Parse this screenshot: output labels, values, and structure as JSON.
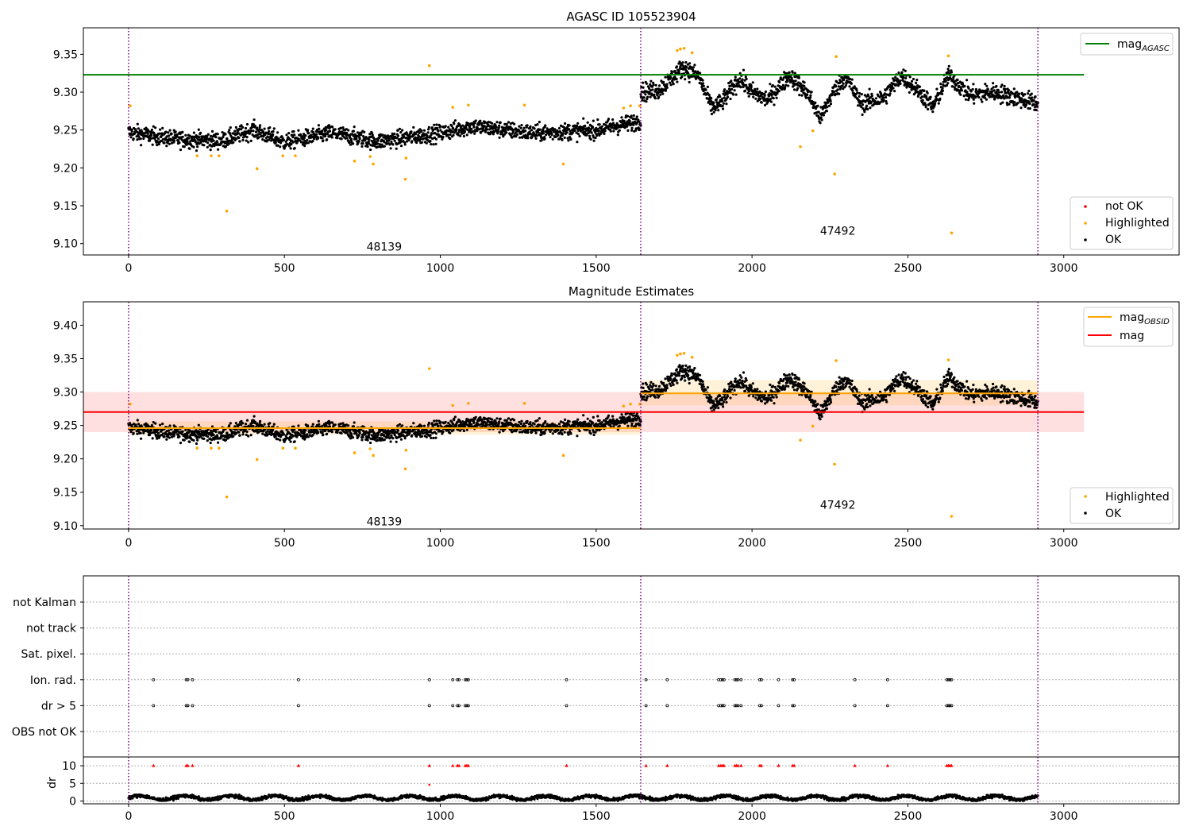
{
  "figure": {
    "title": "AGASC ID 105523904",
    "panel2_title": "Magnitude Estimates"
  },
  "colors": {
    "ok": "#000000",
    "highlighted": "#ffa500",
    "not_ok": "#ff0000",
    "mag_agasc": "#008000",
    "mag_obsid": "#ffa500",
    "mag": "#ff0000",
    "boundary": "#800080",
    "grid": "#b0b0b0"
  },
  "chart_data": [
    {
      "type": "scatter",
      "title": "AGASC ID 105523904",
      "xlim": [
        -145,
        3370
      ],
      "ylim": [
        9.085,
        9.385
      ],
      "xticks": [
        "0",
        "500",
        "1000",
        "1500",
        "2000",
        "2500",
        "3000"
      ],
      "yticks": [
        "9.10",
        "9.15",
        "9.20",
        "9.25",
        "9.30",
        "9.35"
      ],
      "legend_upper": {
        "placement": "top-right",
        "entries": [
          "mag_AGASC"
        ]
      },
      "legend_lower": {
        "placement": "bottom-right",
        "entries": [
          "not OK",
          "Highlighted",
          "OK"
        ]
      },
      "mag_agasc": 9.323,
      "mag_agasc_x_end": 3065,
      "obsid_boundaries": [
        0,
        1643,
        2917
      ],
      "obsids": [
        {
          "label": "48139",
          "x": 820,
          "y": 9.096
        },
        {
          "label": "47492",
          "x": 2275,
          "y": 9.117
        }
      ],
      "segments": [
        {
          "x": [
            0,
            1643
          ],
          "trend": [
            [
              0,
              9.247
            ],
            [
              150,
              9.238
            ],
            [
              300,
              9.236
            ],
            [
              400,
              9.25
            ],
            [
              500,
              9.234
            ],
            [
              650,
              9.246
            ],
            [
              800,
              9.235
            ],
            [
              1000,
              9.246
            ],
            [
              1100,
              9.255
            ],
            [
              1300,
              9.246
            ],
            [
              1500,
              9.25
            ],
            [
              1643,
              9.262
            ]
          ],
          "noise": 0.01
        },
        {
          "x": [
            1643,
            2917
          ],
          "trend": [
            [
              1643,
              9.3
            ],
            [
              1700,
              9.303
            ],
            [
              1780,
              9.333
            ],
            [
              1830,
              9.32
            ],
            [
              1870,
              9.28
            ],
            [
              1900,
              9.285
            ],
            [
              1960,
              9.318
            ],
            [
              2000,
              9.3
            ],
            [
              2050,
              9.29
            ],
            [
              2120,
              9.322
            ],
            [
              2180,
              9.298
            ],
            [
              2220,
              9.266
            ],
            [
              2260,
              9.3
            ],
            [
              2300,
              9.32
            ],
            [
              2350,
              9.285
            ],
            [
              2420,
              9.292
            ],
            [
              2480,
              9.322
            ],
            [
              2540,
              9.3
            ],
            [
              2580,
              9.28
            ],
            [
              2630,
              9.322
            ],
            [
              2700,
              9.296
            ],
            [
              2780,
              9.3
            ],
            [
              2917,
              9.285
            ]
          ],
          "noise": 0.011
        }
      ],
      "highlighted_points": [
        {
          "x": 5,
          "y": 9.282
        },
        {
          "x": 220,
          "y": 9.216
        },
        {
          "x": 265,
          "y": 9.216
        },
        {
          "x": 290,
          "y": 9.216
        },
        {
          "x": 315,
          "y": 9.143
        },
        {
          "x": 412,
          "y": 9.199
        },
        {
          "x": 495,
          "y": 9.216
        },
        {
          "x": 535,
          "y": 9.216
        },
        {
          "x": 725,
          "y": 9.209
        },
        {
          "x": 775,
          "y": 9.215
        },
        {
          "x": 785,
          "y": 9.205
        },
        {
          "x": 890,
          "y": 9.213
        },
        {
          "x": 888,
          "y": 9.185
        },
        {
          "x": 965,
          "y": 9.335
        },
        {
          "x": 1040,
          "y": 9.28
        },
        {
          "x": 1090,
          "y": 9.283
        },
        {
          "x": 1270,
          "y": 9.283
        },
        {
          "x": 1395,
          "y": 9.205
        },
        {
          "x": 1588,
          "y": 9.279
        },
        {
          "x": 1610,
          "y": 9.282
        },
        {
          "x": 1640,
          "y": 9.282
        },
        {
          "x": 1760,
          "y": 9.355
        },
        {
          "x": 1770,
          "y": 9.357
        },
        {
          "x": 1782,
          "y": 9.358
        },
        {
          "x": 1808,
          "y": 9.352
        },
        {
          "x": 2155,
          "y": 9.228
        },
        {
          "x": 2195,
          "y": 9.249
        },
        {
          "x": 2265,
          "y": 9.192
        },
        {
          "x": 2270,
          "y": 9.347
        },
        {
          "x": 2630,
          "y": 9.348
        },
        {
          "x": 2640,
          "y": 9.114
        }
      ]
    },
    {
      "type": "scatter",
      "title": "Magnitude Estimates",
      "xlim": [
        -145,
        3370
      ],
      "ylim": [
        9.095,
        9.435
      ],
      "xticks": [
        "0",
        "500",
        "1000",
        "1500",
        "2000",
        "2500",
        "3000"
      ],
      "yticks": [
        "9.10",
        "9.15",
        "9.20",
        "9.25",
        "9.30",
        "9.35",
        "9.40"
      ],
      "legend_upper": {
        "placement": "top-right",
        "entries": [
          "mag_OBSID",
          "mag"
        ]
      },
      "legend_lower": {
        "placement": "bottom-right",
        "entries": [
          "Highlighted",
          "OK"
        ]
      },
      "mag": 9.27,
      "mag_band": [
        9.24,
        9.3
      ],
      "mag_x_range": [
        -145,
        3065
      ],
      "mag_obsid": [
        {
          "x": [
            0,
            1643
          ],
          "value": 9.246,
          "band": [
            9.236,
            9.256
          ]
        },
        {
          "x": [
            1643,
            2917
          ],
          "value": 9.298,
          "band": [
            9.28,
            9.318
          ]
        }
      ],
      "obsid_boundaries": [
        0,
        1643,
        2917
      ],
      "obsids": [
        {
          "label": "48139",
          "x": 820,
          "y": 9.106
        },
        {
          "label": "47492",
          "x": 2275,
          "y": 9.131
        }
      ]
    },
    {
      "type": "scatter",
      "xlim": [
        -145,
        3370
      ],
      "flag_rows": [
        "not Kalman",
        "not track",
        "Sat. pixel.",
        "Ion. rad.",
        "dr > 5",
        "OBS not OK"
      ],
      "flag_x": [
        80,
        185,
        190,
        205,
        545,
        965,
        1040,
        1055,
        1060,
        1080,
        1085,
        1090,
        1405,
        1660,
        1728,
        1893,
        1900,
        1905,
        1910,
        1945,
        1950,
        1955,
        1965,
        2025,
        2030,
        2085,
        2130,
        2135,
        2330,
        2435,
        2625,
        2630,
        2635,
        2640
      ],
      "dr": {
        "ylabel": "dr",
        "ylim": [
          -0.8,
          12.5
        ],
        "yticks": [
          "0",
          "5",
          "10"
        ],
        "typical_max": 1.8,
        "extra_point": {
          "x": 965,
          "y": 4.6
        }
      },
      "xticks": [
        "0",
        "500",
        "1000",
        "1500",
        "2000",
        "2500",
        "3000"
      ]
    }
  ]
}
